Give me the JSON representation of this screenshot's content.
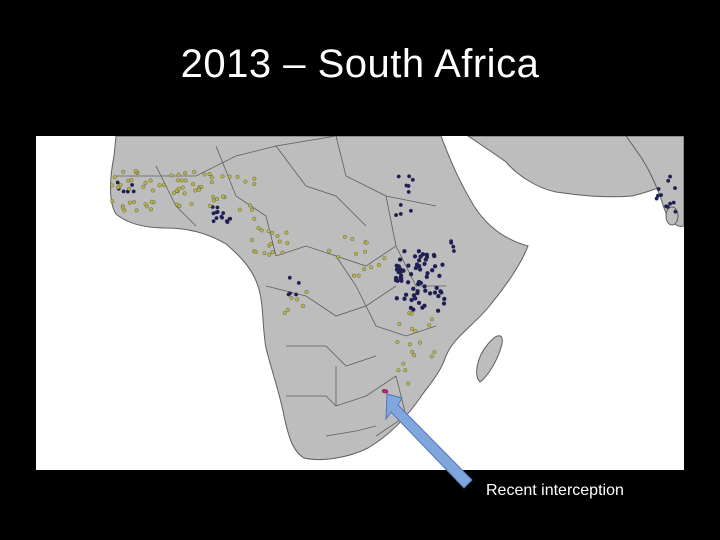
{
  "slide": {
    "title": "2013 – South Africa",
    "caption": "Recent interception"
  },
  "colors": {
    "land": "#bdbdbd",
    "border": "#5f5f5f",
    "water": "#ffffff",
    "olive_points": "#b9b54a",
    "navy_points": "#1c1c60",
    "interception": "#d6167d",
    "arrow": "#7fa6dd"
  },
  "legend": {
    "olive_points": "olive",
    "navy_points": "navy",
    "interception": "magenta"
  }
}
